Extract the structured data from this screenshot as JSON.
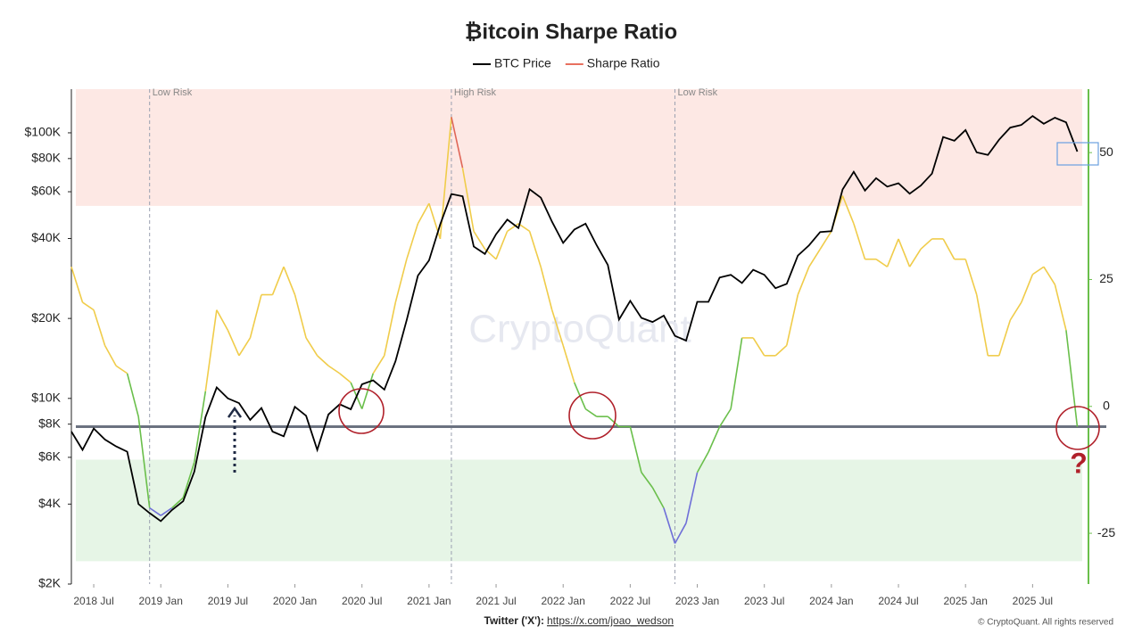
{
  "chart_data": {
    "type": "line",
    "title": "₿itcoin Sharpe Ratio",
    "x": [
      "2018-05",
      "2018-06",
      "2018-07",
      "2018-08",
      "2018-09",
      "2018-10",
      "2018-11",
      "2018-12",
      "2019-01",
      "2019-02",
      "2019-03",
      "2019-04",
      "2019-05",
      "2019-06",
      "2019-07",
      "2019-08",
      "2019-09",
      "2019-10",
      "2019-11",
      "2019-12",
      "2020-01",
      "2020-02",
      "2020-03",
      "2020-04",
      "2020-05",
      "2020-06",
      "2020-07",
      "2020-08",
      "2020-09",
      "2020-10",
      "2020-11",
      "2020-12",
      "2021-01",
      "2021-02",
      "2021-03",
      "2021-04",
      "2021-05",
      "2021-06",
      "2021-07",
      "2021-08",
      "2021-09",
      "2021-10",
      "2021-11",
      "2021-12",
      "2022-01",
      "2022-02",
      "2022-03",
      "2022-04",
      "2022-05",
      "2022-06",
      "2022-07",
      "2022-08",
      "2022-09",
      "2022-10",
      "2022-11",
      "2022-12",
      "2023-01",
      "2023-02",
      "2023-03",
      "2023-04",
      "2023-05",
      "2023-06",
      "2023-07",
      "2023-08",
      "2023-09",
      "2023-10",
      "2023-11",
      "2023-12",
      "2024-01",
      "2024-02",
      "2024-03",
      "2024-04",
      "2024-05",
      "2024-06",
      "2024-07",
      "2024-08",
      "2024-09",
      "2024-10",
      "2024-11",
      "2024-12",
      "2025-01",
      "2025-02",
      "2025-03",
      "2025-04",
      "2025-05",
      "2025-06",
      "2025-07",
      "2025-08",
      "2025-09",
      "2025-10",
      "2025-11"
    ],
    "series": [
      {
        "name": "BTC Price",
        "color": "#000000",
        "axis": "y",
        "values": [
          7500,
          6400,
          7700,
          7000,
          6600,
          6300,
          4000,
          3700,
          3450,
          3800,
          4100,
          5300,
          8500,
          11000,
          10000,
          9600,
          8300,
          9200,
          7500,
          7200,
          9300,
          8600,
          6400,
          8700,
          9500,
          9100,
          11300,
          11700,
          10800,
          13800,
          19700,
          29000,
          33100,
          45200,
          58800,
          57700,
          37300,
          35000,
          41500,
          47100,
          43800,
          61300,
          57000,
          46300,
          38500,
          43200,
          45500,
          37700,
          31800,
          19800,
          23300,
          20100,
          19400,
          20500,
          17200,
          16500,
          23100,
          23100,
          28500,
          29200,
          27200,
          30500,
          29200,
          26000,
          27000,
          34500,
          37700,
          42300,
          42600,
          61200,
          71300,
          60600,
          67500,
          62700,
          64600,
          59000,
          63300,
          70200,
          96400,
          93400,
          102400,
          84400,
          82500,
          94200,
          104600,
          107100,
          115700,
          108200,
          114000,
          109500,
          85000
        ]
      },
      {
        "name": "Sharpe Ratio",
        "color": "#e8705f",
        "axis": "y2",
        "values": [
          27.5,
          20.5,
          19,
          12,
          8,
          6.5,
          -2,
          -20,
          -21.5,
          -20,
          -18,
          -11,
          3,
          19,
          15,
          10,
          13.5,
          22,
          22,
          27.5,
          22,
          13.5,
          10,
          8,
          6.5,
          4.7,
          -0.5,
          6.5,
          10,
          20.5,
          29,
          36,
          40,
          33,
          57,
          47,
          34.5,
          31,
          29,
          34.5,
          36,
          34.5,
          27.5,
          19,
          12,
          4.7,
          -0.5,
          -2,
          -2,
          -4,
          -4,
          -13,
          -16,
          -20,
          -27,
          -23,
          -13,
          -9,
          -4,
          -0.5,
          13.5,
          13.5,
          10,
          10,
          12,
          22,
          27.5,
          31,
          34.5,
          41.5,
          36,
          29,
          29,
          27.5,
          33,
          27.5,
          31,
          33,
          33,
          29,
          29,
          22,
          10,
          10,
          17,
          20.5,
          26,
          27.5,
          24,
          15,
          -4
        ],
        "color_rules": [
          {
            "above": 40,
            "color": "#e06658"
          },
          {
            "below": -20,
            "color": "#6f6fd8"
          },
          {
            "below": 0,
            "color": "#6abf4b"
          }
        ],
        "default_color": "#f0cc4a"
      }
    ],
    "xlim": [
      "2018-05",
      "2025-12"
    ],
    "xticks": [
      {
        "value": "2018-07",
        "label": "2018 Jul"
      },
      {
        "value": "2019-01",
        "label": "2019 Jan"
      },
      {
        "value": "2019-07",
        "label": "2019 Jul"
      },
      {
        "value": "2020-01",
        "label": "2020 Jan"
      },
      {
        "value": "2020-07",
        "label": "2020 Jul"
      },
      {
        "value": "2021-01",
        "label": "2021 Jan"
      },
      {
        "value": "2021-07",
        "label": "2021 Jul"
      },
      {
        "value": "2022-01",
        "label": "2022 Jan"
      },
      {
        "value": "2022-07",
        "label": "2022 Jul"
      },
      {
        "value": "2023-01",
        "label": "2023 Jan"
      },
      {
        "value": "2023-07",
        "label": "2023 Jul"
      },
      {
        "value": "2024-01",
        "label": "2024 Jan"
      },
      {
        "value": "2024-07",
        "label": "2024 Jul"
      },
      {
        "value": "2025-01",
        "label": "2025 Jan"
      },
      {
        "value": "2025-07",
        "label": "2025 Jul"
      }
    ],
    "log_y": true,
    "ylim": [
      2000,
      146000
    ],
    "yticks": [
      {
        "value": 2000,
        "label": "$2K"
      },
      {
        "value": 4000,
        "label": "$4K"
      },
      {
        "value": 6000,
        "label": "$6K"
      },
      {
        "value": 8000,
        "label": "$8K"
      },
      {
        "value": 10000,
        "label": "$10K"
      },
      {
        "value": 20000,
        "label": "$20K"
      },
      {
        "value": 40000,
        "label": "$40K"
      },
      {
        "value": 60000,
        "label": "$60K"
      },
      {
        "value": 80000,
        "label": "$80K"
      },
      {
        "value": 100000,
        "label": "$100K"
      }
    ],
    "y2lim": [
      -35,
      62.5
    ],
    "y2ticks": [
      -25,
      0,
      25,
      50
    ],
    "bands": [
      {
        "axis": "y2",
        "from": 39.5,
        "to": 62.5,
        "color": "#fde8e4"
      },
      {
        "axis": "y2",
        "from": -30.5,
        "to": -10.5,
        "color": "#e6f5e6"
      }
    ],
    "reference_line": {
      "axis": "y2",
      "value": -4,
      "color": "#6b7280"
    },
    "vlines": [
      {
        "x": "2018-12",
        "label": "Low Risk"
      },
      {
        "x": "2021-03",
        "label": "High Risk"
      },
      {
        "x": "2022-11",
        "label": "Low Risk"
      }
    ],
    "annotation": "?",
    "watermark": "CryptoQuant",
    "footer": {
      "twitter_label": "Twitter ('X'):",
      "twitter_url": "https://x.com/joao_wedson",
      "copyright": "© CryptoQuant. All rights reserved"
    }
  }
}
